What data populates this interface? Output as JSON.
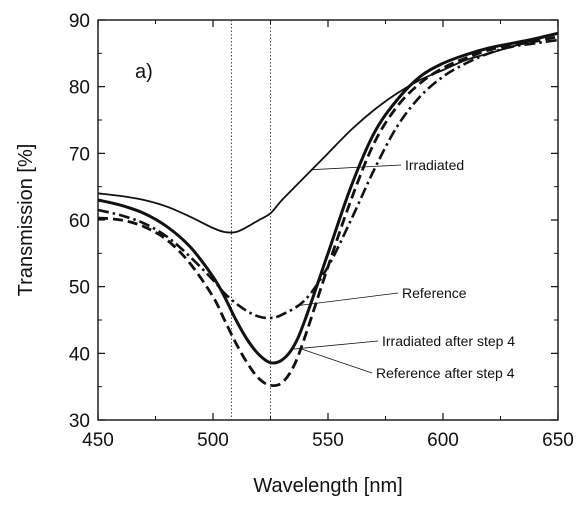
{
  "chart_data": {
    "type": "line",
    "panel_label": "a)",
    "xlabel": "Wavelength [nm]",
    "ylabel": "Transmission [%]",
    "xlim": [
      450,
      650
    ],
    "ylim": [
      30,
      90
    ],
    "xticks": [
      450,
      500,
      550,
      600,
      650
    ],
    "yticks": [
      30,
      40,
      50,
      60,
      70,
      80,
      90
    ],
    "grid": false,
    "vlines": [
      508,
      525
    ],
    "series": [
      {
        "name": "Irradiated",
        "style": "solid",
        "x": [
          450,
          460,
          470,
          480,
          490,
          500,
          505,
          510,
          515,
          520,
          525,
          530,
          540,
          550,
          560,
          570,
          580,
          590,
          600,
          610,
          620,
          630,
          640,
          650
        ],
        "y": [
          64,
          63.6,
          63,
          62,
          60.5,
          58.8,
          58.2,
          58.2,
          59,
          60,
          61,
          63,
          66.5,
          70,
          73.5,
          76.5,
          79,
          81,
          82.5,
          84,
          85,
          86,
          87,
          88
        ]
      },
      {
        "name": "Reference",
        "style": "dashdot",
        "x": [
          450,
          460,
          470,
          480,
          490,
          500,
          505,
          510,
          515,
          520,
          525,
          530,
          540,
          550,
          560,
          570,
          580,
          590,
          600,
          610,
          620,
          630,
          640,
          650
        ],
        "y": [
          61.5,
          60.7,
          59.5,
          57.5,
          54.5,
          51,
          49,
          47.5,
          46.3,
          45.5,
          45.3,
          45.8,
          48,
          53,
          60,
          67.5,
          74,
          78.5,
          81.5,
          83.5,
          85,
          86,
          86.5,
          87
        ]
      },
      {
        "name": "Irradiated after step 4",
        "style": "solid-bold",
        "x": [
          450,
          460,
          470,
          480,
          490,
          500,
          505,
          510,
          515,
          520,
          525,
          530,
          535,
          540,
          550,
          560,
          570,
          580,
          590,
          600,
          610,
          620,
          630,
          640,
          650
        ],
        "y": [
          63,
          62.2,
          61,
          59,
          56,
          51.5,
          48.5,
          45,
          42,
          39.8,
          38.6,
          39,
          41,
          45,
          55,
          65,
          73,
          78,
          81.5,
          83.5,
          84.8,
          85.8,
          86.5,
          87.2,
          88
        ]
      },
      {
        "name": "Reference after step 4",
        "style": "dashed",
        "x": [
          450,
          460,
          470,
          480,
          490,
          500,
          505,
          510,
          515,
          520,
          525,
          530,
          535,
          540,
          550,
          560,
          570,
          580,
          590,
          600,
          610,
          620,
          630,
          640,
          650
        ],
        "y": [
          60.3,
          60,
          59,
          57,
          53.5,
          48.5,
          45,
          41.5,
          38.5,
          36.2,
          35.2,
          35.6,
          38,
          42.5,
          53,
          63,
          71.5,
          77,
          80.5,
          82.8,
          84.3,
          85.5,
          86.2,
          86.8,
          87.5
        ]
      }
    ],
    "annotations": [
      {
        "text": "Irradiated",
        "target_series": 0,
        "at_x": 543
      },
      {
        "text": "Reference",
        "target_series": 1,
        "at_x": 536
      },
      {
        "text": "Irradiated after step 4",
        "target_series": 2,
        "at_x": 534
      },
      {
        "text": "Reference after step 4",
        "target_series": 3,
        "at_x": 538
      }
    ]
  }
}
